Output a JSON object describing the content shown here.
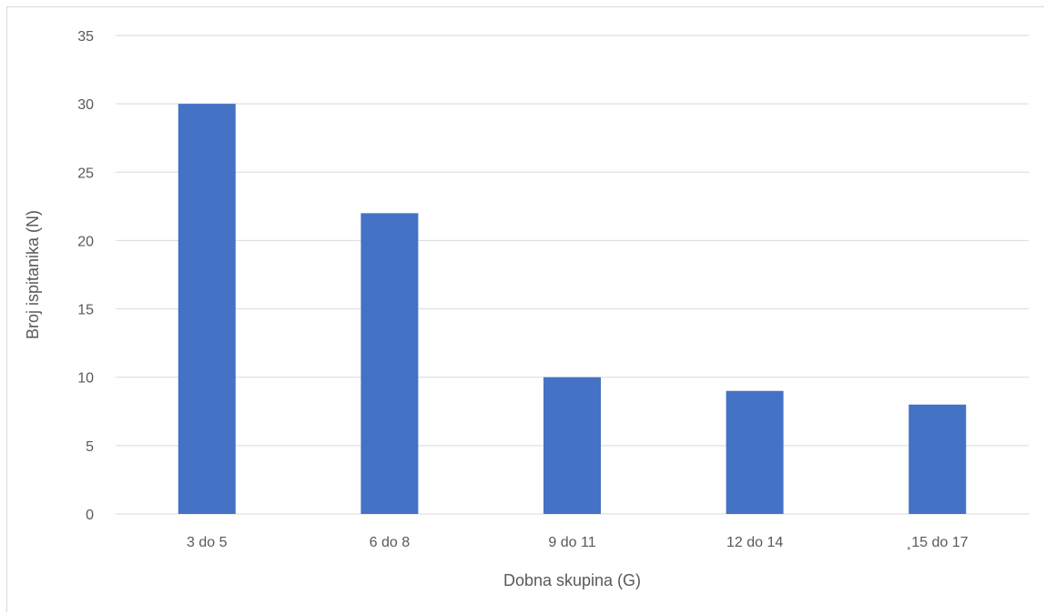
{
  "chart_data": {
    "type": "bar",
    "categories": [
      "3 do 5",
      "6 do 8",
      "9 do 11",
      "12 do 14",
      "¸15 do 17"
    ],
    "values": [
      30,
      22,
      10,
      9,
      8
    ],
    "title": "",
    "xlabel": "Dobna skupina (G)",
    "ylabel": "Broj ispitanika (N)",
    "ylim": [
      0,
      35
    ],
    "yticks": [
      0,
      5,
      10,
      15,
      20,
      25,
      30,
      35
    ],
    "grid": true,
    "legend": "none",
    "bar_color": "#4472C4",
    "grid_color": "#d9d9d9"
  }
}
